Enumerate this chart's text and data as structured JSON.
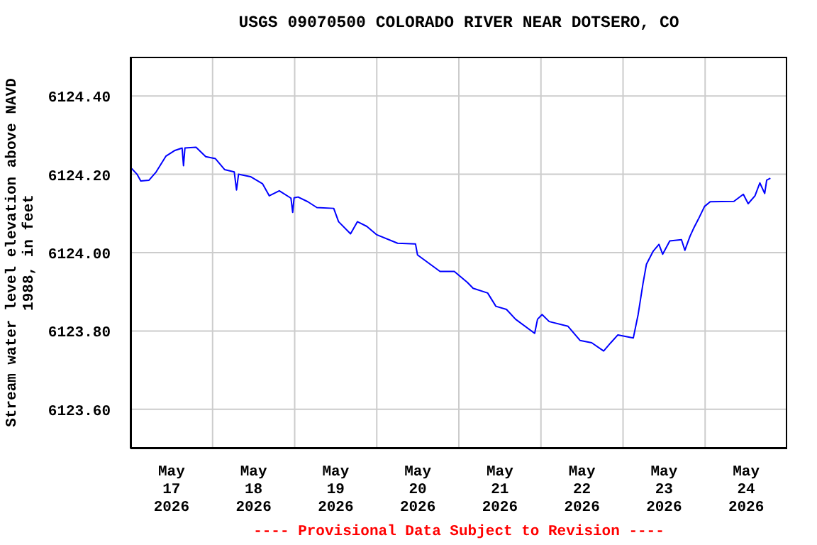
{
  "chart_data": {
    "type": "line",
    "title": "USGS 09070500 COLORADO RIVER NEAR DOTSERO, CO",
    "ylabel": "Stream water level elevation above NAVD\n1988, in feet",
    "annotations": [
      "---- Provisional Data Subject to Revision ----"
    ],
    "xlim": [
      "2026-05-17T00:00",
      "2026-05-25T00:00"
    ],
    "xticks": [
      {
        "value": "2026-05-17T12:00",
        "label": "May\n17\n2026"
      },
      {
        "value": "2026-05-18T00:00",
        "label": null
      },
      {
        "value": "2026-05-18T12:00",
        "label": "May\n18\n2026"
      },
      {
        "value": "2026-05-19T00:00",
        "label": null
      },
      {
        "value": "2026-05-19T12:00",
        "label": "May\n19\n2026"
      },
      {
        "value": "2026-05-20T00:00",
        "label": null
      },
      {
        "value": "2026-05-20T12:00",
        "label": "May\n20\n2026"
      },
      {
        "value": "2026-05-21T00:00",
        "label": null
      },
      {
        "value": "2026-05-21T12:00",
        "label": "May\n21\n2026"
      },
      {
        "value": "2026-05-22T00:00",
        "label": null
      },
      {
        "value": "2026-05-22T12:00",
        "label": "May\n22\n2026"
      },
      {
        "value": "2026-05-23T00:00",
        "label": null
      },
      {
        "value": "2026-05-23T12:00",
        "label": "May\n23\n2026"
      },
      {
        "value": "2026-05-24T00:00",
        "label": null
      },
      {
        "value": "2026-05-24T12:00",
        "label": "May\n24\n2026"
      }
    ],
    "ylim": [
      6123.5,
      6124.5
    ],
    "yticks": [
      {
        "value": 6123.6,
        "label": "6123.60"
      },
      {
        "value": 6123.8,
        "label": "6123.80"
      },
      {
        "value": 6124.0,
        "label": "6124.00"
      },
      {
        "value": 6124.2,
        "label": "6124.20"
      },
      {
        "value": 6124.4,
        "label": "6124.40"
      }
    ],
    "grid": true,
    "x": [
      "2026-05-17T00:20",
      "2026-05-17T01:55",
      "2026-05-17T03:00",
      "2026-05-17T05:25",
      "2026-05-17T07:30",
      "2026-05-17T10:20",
      "2026-05-17T13:00",
      "2026-05-17T15:05",
      "2026-05-17T15:30",
      "2026-05-17T15:55",
      "2026-05-17T19:10",
      "2026-05-17T22:00",
      "2026-05-18T00:50",
      "2026-05-18T03:30",
      "2026-05-18T06:20",
      "2026-05-18T07:00",
      "2026-05-18T07:35",
      "2026-05-18T11:05",
      "2026-05-18T14:35",
      "2026-05-18T16:35",
      "2026-05-18T19:30",
      "2026-05-18T22:55",
      "2026-05-18T23:25",
      "2026-05-18T23:50",
      "2026-05-19T01:00",
      "2026-05-19T03:50",
      "2026-05-19T06:30",
      "2026-05-19T11:25",
      "2026-05-19T12:50",
      "2026-05-19T16:20",
      "2026-05-19T18:20",
      "2026-05-19T21:05",
      "2026-05-19T23:55",
      "2026-05-20T06:05",
      "2026-05-20T11:20",
      "2026-05-20T11:55",
      "2026-05-20T15:40",
      "2026-05-20T18:30",
      "2026-05-20T22:40",
      "2026-05-21T02:30",
      "2026-05-21T04:10",
      "2026-05-21T08:25",
      "2026-05-21T10:50",
      "2026-05-21T13:55",
      "2026-05-21T16:35",
      "2026-05-21T22:10",
      "2026-05-21T23:00",
      "2026-05-22T00:20",
      "2026-05-22T02:25",
      "2026-05-22T07:55",
      "2026-05-22T11:25",
      "2026-05-22T14:50",
      "2026-05-22T18:20",
      "2026-05-22T20:25",
      "2026-05-22T22:30",
      "2026-05-23T03:00",
      "2026-05-23T04:25",
      "2026-05-23T05:50",
      "2026-05-23T06:50",
      "2026-05-23T08:50",
      "2026-05-23T10:30",
      "2026-05-23T11:35",
      "2026-05-23T13:40",
      "2026-05-23T17:05",
      "2026-05-23T18:05",
      "2026-05-23T19:35",
      "2026-05-23T20:35",
      "2026-05-23T22:00",
      "2026-05-23T23:50",
      "2026-05-24T01:30",
      "2026-05-24T08:25",
      "2026-05-24T11:10",
      "2026-05-24T12:35",
      "2026-05-24T14:35",
      "2026-05-24T16:00",
      "2026-05-24T17:25",
      "2026-05-24T18:00",
      "2026-05-24T19:05"
    ],
    "series": [
      {
        "color": "#0000ff",
        "values": [
          6124.215,
          6124.2,
          6124.183,
          6124.185,
          6124.206,
          6124.246,
          6124.261,
          6124.267,
          6124.222,
          6124.267,
          6124.269,
          6124.245,
          6124.24,
          6124.212,
          6124.206,
          6124.16,
          6124.2,
          6124.194,
          6124.176,
          6124.145,
          6124.158,
          6124.139,
          6124.103,
          6124.14,
          6124.142,
          6124.13,
          6124.115,
          6124.113,
          6124.079,
          6124.048,
          6124.079,
          6124.067,
          6124.046,
          6124.024,
          6124.022,
          6123.994,
          6123.97,
          6123.952,
          6123.952,
          6123.924,
          6123.909,
          6123.897,
          6123.863,
          6123.855,
          6123.83,
          6123.794,
          6123.83,
          6123.842,
          6123.824,
          6123.812,
          6123.776,
          6123.77,
          6123.749,
          6123.77,
          6123.79,
          6123.782,
          6123.842,
          6123.921,
          6123.97,
          6124.004,
          6124.021,
          6123.996,
          6124.03,
          6124.033,
          6124.006,
          6124.042,
          6124.061,
          6124.085,
          6124.118,
          6124.13,
          6124.131,
          6124.149,
          6124.125,
          6124.145,
          6124.178,
          6124.151,
          6124.185,
          6124.19
        ]
      }
    ]
  }
}
